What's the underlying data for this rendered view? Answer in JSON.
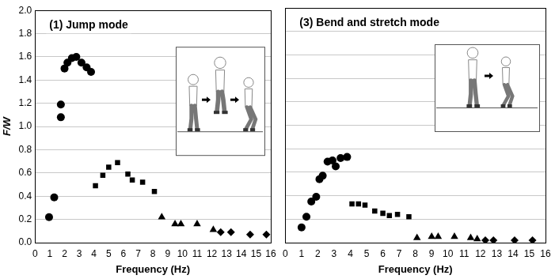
{
  "chart_data": [
    {
      "type": "scatter",
      "title": "(1) Jump mode",
      "x_label": "Frequency (Hz)",
      "y_label": "F/W",
      "xlim": [
        0,
        16
      ],
      "xticks": [
        0,
        1,
        2,
        3,
        4,
        5,
        6,
        7,
        8,
        9,
        10,
        11,
        12,
        13,
        14,
        15,
        16
      ],
      "ylim": [
        0,
        2
      ],
      "yticks": [
        {
          "value": 0,
          "label": "0.0"
        },
        {
          "value": 0.2,
          "label": "0.2"
        },
        {
          "value": 0.4,
          "label": "0.4"
        },
        {
          "value": 0.6,
          "label": "0.6"
        },
        {
          "value": 0.8,
          "label": "0.8"
        },
        {
          "value": 1,
          "label": "1.0"
        },
        {
          "value": 1.2,
          "label": "1.2"
        },
        {
          "value": 1.4,
          "label": "1.4"
        },
        {
          "value": 1.6,
          "label": "1.6"
        },
        {
          "value": 1.8,
          "label": "1.8"
        },
        {
          "value": 2,
          "label": "2.0"
        }
      ],
      "grid": true,
      "series": [
        {
          "marker": "circle",
          "color": "#000000",
          "x": [
            0.95,
            1.3,
            1.75,
            1.75,
            2.0,
            2.2,
            2.5,
            2.8,
            3.15,
            3.5,
            3.8
          ],
          "values": [
            0.22,
            0.39,
            1.08,
            1.19,
            1.5,
            1.55,
            1.59,
            1.6,
            1.55,
            1.51,
            1.47
          ]
        },
        {
          "marker": "square",
          "color": "#000000",
          "x": [
            4.1,
            4.6,
            5.0,
            5.6,
            6.3,
            6.6,
            7.3,
            8.1
          ],
          "values": [
            0.49,
            0.58,
            0.65,
            0.69,
            0.59,
            0.54,
            0.52,
            0.44
          ]
        },
        {
          "marker": "triangle",
          "color": "#000000",
          "x": [
            8.6,
            9.5,
            9.9,
            11.0,
            12.1
          ],
          "values": [
            0.22,
            0.16,
            0.16,
            0.16,
            0.11
          ]
        },
        {
          "marker": "diamond",
          "color": "#000000",
          "x": [
            12.6,
            13.3,
            14.6,
            15.7
          ],
          "values": [
            0.09,
            0.09,
            0.07,
            0.07
          ]
        }
      ]
    },
    {
      "type": "scatter",
      "title": "(3) Bend and stretch mode",
      "x_label": "Frequency (Hz)",
      "xlim": [
        0,
        16
      ],
      "xticks": [
        0,
        1,
        2,
        3,
        4,
        5,
        6,
        7,
        8,
        9,
        10,
        11,
        12,
        13,
        14,
        15,
        16
      ],
      "ylim": [
        0,
        2
      ],
      "yticks": [
        {
          "value": 0,
          "label": "0.0"
        },
        {
          "value": 0.2,
          "label": "0.2"
        },
        {
          "value": 0.4,
          "label": "0.4"
        },
        {
          "value": 0.6,
          "label": "0.6"
        },
        {
          "value": 0.8,
          "label": "0.8"
        },
        {
          "value": 1,
          "label": "1.0"
        },
        {
          "value": 1.2,
          "label": "1.2"
        },
        {
          "value": 1.4,
          "label": "1.4"
        },
        {
          "value": 1.6,
          "label": "1.6"
        },
        {
          "value": 1.8,
          "label": "1.8"
        },
        {
          "value": 2,
          "label": "2.0"
        }
      ],
      "grid": true,
      "tick_labels": "x",
      "series": [
        {
          "marker": "circle",
          "color": "#000000",
          "x": [
            1.0,
            1.3,
            1.6,
            1.9,
            2.1,
            2.3,
            2.6,
            2.9,
            3.1,
            3.4,
            3.8
          ],
          "values": [
            0.13,
            0.22,
            0.35,
            0.39,
            0.54,
            0.57,
            0.69,
            0.7,
            0.65,
            0.72,
            0.73
          ]
        },
        {
          "marker": "square",
          "color": "#000000",
          "x": [
            4.1,
            4.5,
            4.9,
            5.5,
            6.0,
            6.4,
            6.9,
            7.6
          ],
          "values": [
            0.33,
            0.33,
            0.32,
            0.27,
            0.25,
            0.23,
            0.24,
            0.22
          ]
        },
        {
          "marker": "triangle",
          "color": "#000000",
          "x": [
            8.1,
            9.0,
            9.4,
            10.4,
            11.4,
            11.8
          ],
          "values": [
            0.04,
            0.05,
            0.05,
            0.05,
            0.04,
            0.03
          ]
        },
        {
          "marker": "diamond",
          "color": "#000000",
          "x": [
            12.3,
            12.8,
            14.1,
            15.2
          ],
          "values": [
            0.02,
            0.02,
            0.02,
            0.02
          ]
        }
      ]
    }
  ]
}
